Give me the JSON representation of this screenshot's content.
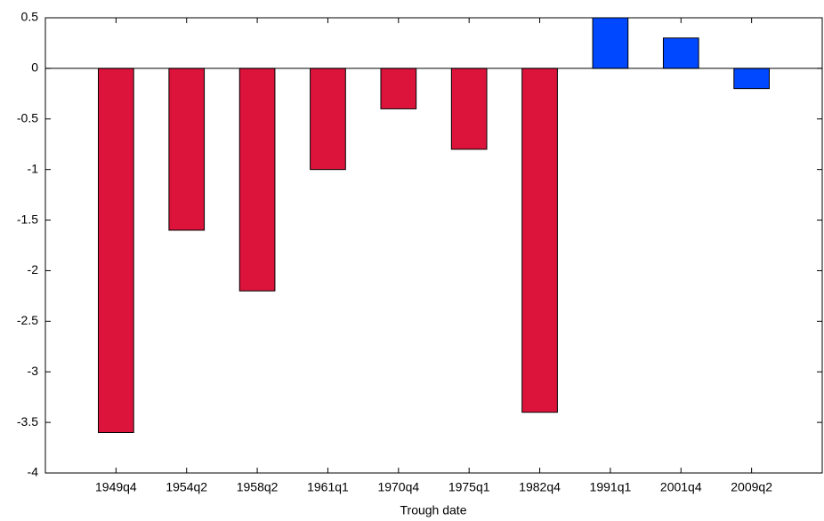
{
  "chart_data": {
    "type": "bar",
    "xlabel": "Trough date",
    "categories": [
      "1949q4",
      "1954q2",
      "1958q2",
      "1961q1",
      "1970q4",
      "1975q1",
      "1982q4",
      "1991q1",
      "2001q4",
      "2009q2"
    ],
    "values": [
      -3.6,
      -1.6,
      -2.2,
      -1.0,
      -0.4,
      -0.8,
      -3.4,
      0.5,
      0.3,
      -0.2
    ],
    "colors": [
      "#dc143c",
      "#dc143c",
      "#dc143c",
      "#dc143c",
      "#dc143c",
      "#dc143c",
      "#dc143c",
      "#0048ff",
      "#0048ff",
      "#0048ff"
    ],
    "ylim": [
      -4,
      0.5
    ],
    "yticks": [
      0.5,
      0,
      -0.5,
      -1,
      -1.5,
      -2,
      -2.5,
      -3,
      -3.5,
      -4
    ],
    "grid": false
  }
}
